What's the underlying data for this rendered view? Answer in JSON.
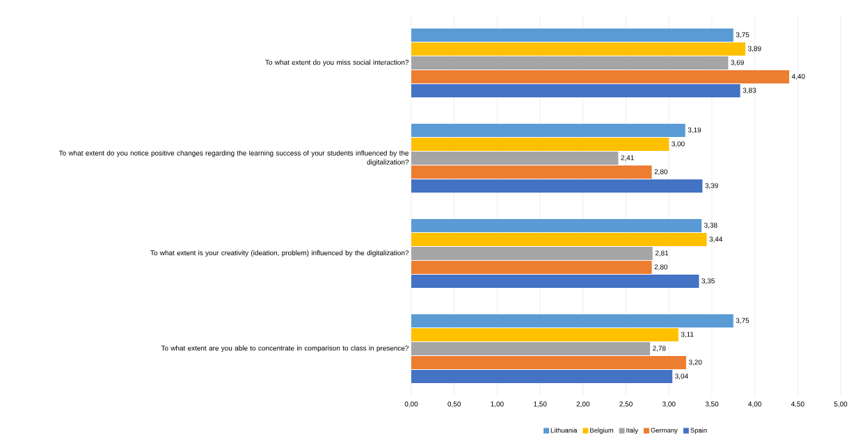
{
  "chart_data": {
    "type": "bar",
    "orientation": "horizontal",
    "grid": "x",
    "legend": "bottom",
    "categories": [
      "To what extent do you miss social interaction?",
      "To what extent do you notice positive changes regarding the learning success of your students influenced by the digitalization?",
      "To what extent is your creativity (ideation, problem) influenced by the digitalization?",
      "To what extent are you able to concentrate in comparison to class in presence?"
    ],
    "series": [
      {
        "name": "Lithuania",
        "color": "#5b9bd5",
        "values": [
          3.75,
          3.19,
          3.38,
          3.75
        ],
        "value_labels": [
          "3,75",
          "3,19",
          "3,38",
          "3,75"
        ]
      },
      {
        "name": "Belgium",
        "color": "#ffc000",
        "values": [
          3.89,
          3.0,
          3.44,
          3.11
        ],
        "value_labels": [
          "3,89",
          "3,00",
          "3,44",
          "3,11"
        ]
      },
      {
        "name": "Italy",
        "color": "#a5a5a5",
        "values": [
          3.69,
          2.41,
          2.81,
          2.78
        ],
        "value_labels": [
          "3,69",
          "2,41",
          "2,81",
          "2,78"
        ]
      },
      {
        "name": "Germany",
        "color": "#ed7d31",
        "values": [
          4.4,
          2.8,
          2.8,
          3.2
        ],
        "value_labels": [
          "4,40",
          "2,80",
          "2,80",
          "3,20"
        ]
      },
      {
        "name": "Spain",
        "color": "#4472c4",
        "values": [
          3.83,
          3.39,
          3.35,
          3.04
        ],
        "value_labels": [
          "3,83",
          "3,39",
          "3,35",
          "3,04"
        ]
      }
    ],
    "xlim": [
      0,
      5
    ],
    "xticks": [
      {
        "value": 0,
        "label": "0,00"
      },
      {
        "value": 0.5,
        "label": "0,50"
      },
      {
        "value": 1,
        "label": "1,00"
      },
      {
        "value": 1.5,
        "label": "1,50"
      },
      {
        "value": 2,
        "label": "2,00"
      },
      {
        "value": 2.5,
        "label": "2,50"
      },
      {
        "value": 3,
        "label": "3,00"
      },
      {
        "value": 3.5,
        "label": "3,50"
      },
      {
        "value": 4,
        "label": "4,00"
      },
      {
        "value": 4.5,
        "label": "4,50"
      },
      {
        "value": 5,
        "label": "5,00"
      }
    ]
  }
}
